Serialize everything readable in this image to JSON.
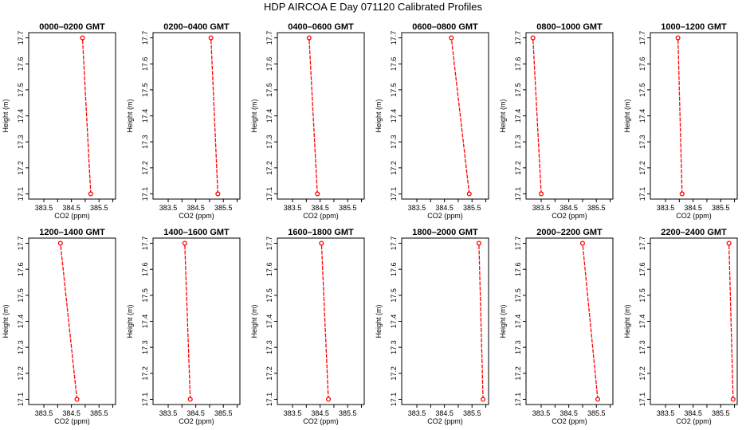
{
  "figure": {
    "title": "HDP  AIRCOA E  Day 071120  Calibrated Profiles"
  },
  "colors": {
    "series": "#ff0000",
    "frame": "#000000"
  },
  "chart_data": [
    {
      "type": "line",
      "title": "0000–0200 GMT",
      "xlabel": "CO2 (ppm)",
      "ylabel": "Height (m)",
      "x": [
        385.2,
        384.9
      ],
      "y": [
        17.1,
        17.7
      ]
    },
    {
      "type": "line",
      "title": "0200–0400 GMT",
      "xlabel": "CO2 (ppm)",
      "ylabel": "Height (m)",
      "x": [
        385.3,
        385.05
      ],
      "y": [
        17.1,
        17.7
      ]
    },
    {
      "type": "line",
      "title": "0400–0600 GMT",
      "xlabel": "CO2 (ppm)",
      "ylabel": "Height (m)",
      "x": [
        384.4,
        384.1
      ],
      "y": [
        17.1,
        17.7
      ]
    },
    {
      "type": "line",
      "title": "0600–0800 GMT",
      "xlabel": "CO2 (ppm)",
      "ylabel": "Height (m)",
      "x": [
        385.4,
        384.75
      ],
      "y": [
        17.1,
        17.7
      ]
    },
    {
      "type": "line",
      "title": "0800–1000 GMT",
      "xlabel": "CO2 (ppm)",
      "ylabel": "Height (m)",
      "x": [
        383.5,
        383.2
      ],
      "y": [
        17.1,
        17.7
      ]
    },
    {
      "type": "line",
      "title": "1000–1200 GMT",
      "xlabel": "CO2 (ppm)",
      "ylabel": "Height (m)",
      "x": [
        384.1,
        383.95
      ],
      "y": [
        17.1,
        17.7
      ]
    },
    {
      "type": "line",
      "title": "1200–1400 GMT",
      "xlabel": "CO2 (ppm)",
      "ylabel": "Height (m)",
      "x": [
        384.7,
        384.1
      ],
      "y": [
        17.1,
        17.7
      ]
    },
    {
      "type": "line",
      "title": "1400–1600 GMT",
      "xlabel": "CO2 (ppm)",
      "ylabel": "Height (m)",
      "x": [
        384.3,
        384.1
      ],
      "y": [
        17.1,
        17.7
      ]
    },
    {
      "type": "line",
      "title": "1600–1800 GMT",
      "xlabel": "CO2 (ppm)",
      "ylabel": "Height (m)",
      "x": [
        384.8,
        384.55
      ],
      "y": [
        17.1,
        17.7
      ]
    },
    {
      "type": "line",
      "title": "1800–2000 GMT",
      "xlabel": "CO2 (ppm)",
      "ylabel": "Height (m)",
      "x": [
        385.9,
        385.75
      ],
      "y": [
        17.1,
        17.7
      ]
    },
    {
      "type": "line",
      "title": "2000–2200 GMT",
      "xlabel": "CO2 (ppm)",
      "ylabel": "Height (m)",
      "x": [
        385.55,
        385.0
      ],
      "y": [
        17.1,
        17.7
      ]
    },
    {
      "type": "line",
      "title": "2200–2400 GMT",
      "xlabel": "CO2 (ppm)",
      "ylabel": "Height (m)",
      "x": [
        385.95,
        385.8
      ],
      "y": [
        17.1,
        17.7
      ]
    }
  ],
  "axes": {
    "xlim": [
      382.95,
      386.1
    ],
    "ylim": [
      17.08,
      17.72
    ],
    "xticks": [
      383.5,
      384,
      384.5,
      385,
      385.5,
      386
    ],
    "xtick_labels": [
      "383.5",
      "",
      "384.5",
      "",
      "385.5",
      ""
    ],
    "yticks": [
      17.1,
      17.2,
      17.3,
      17.4,
      17.5,
      17.6,
      17.7
    ],
    "ytick_labels": [
      "17.1",
      "17.2",
      "17.3",
      "17.4",
      "17.5",
      "17.6",
      "17.7"
    ]
  }
}
